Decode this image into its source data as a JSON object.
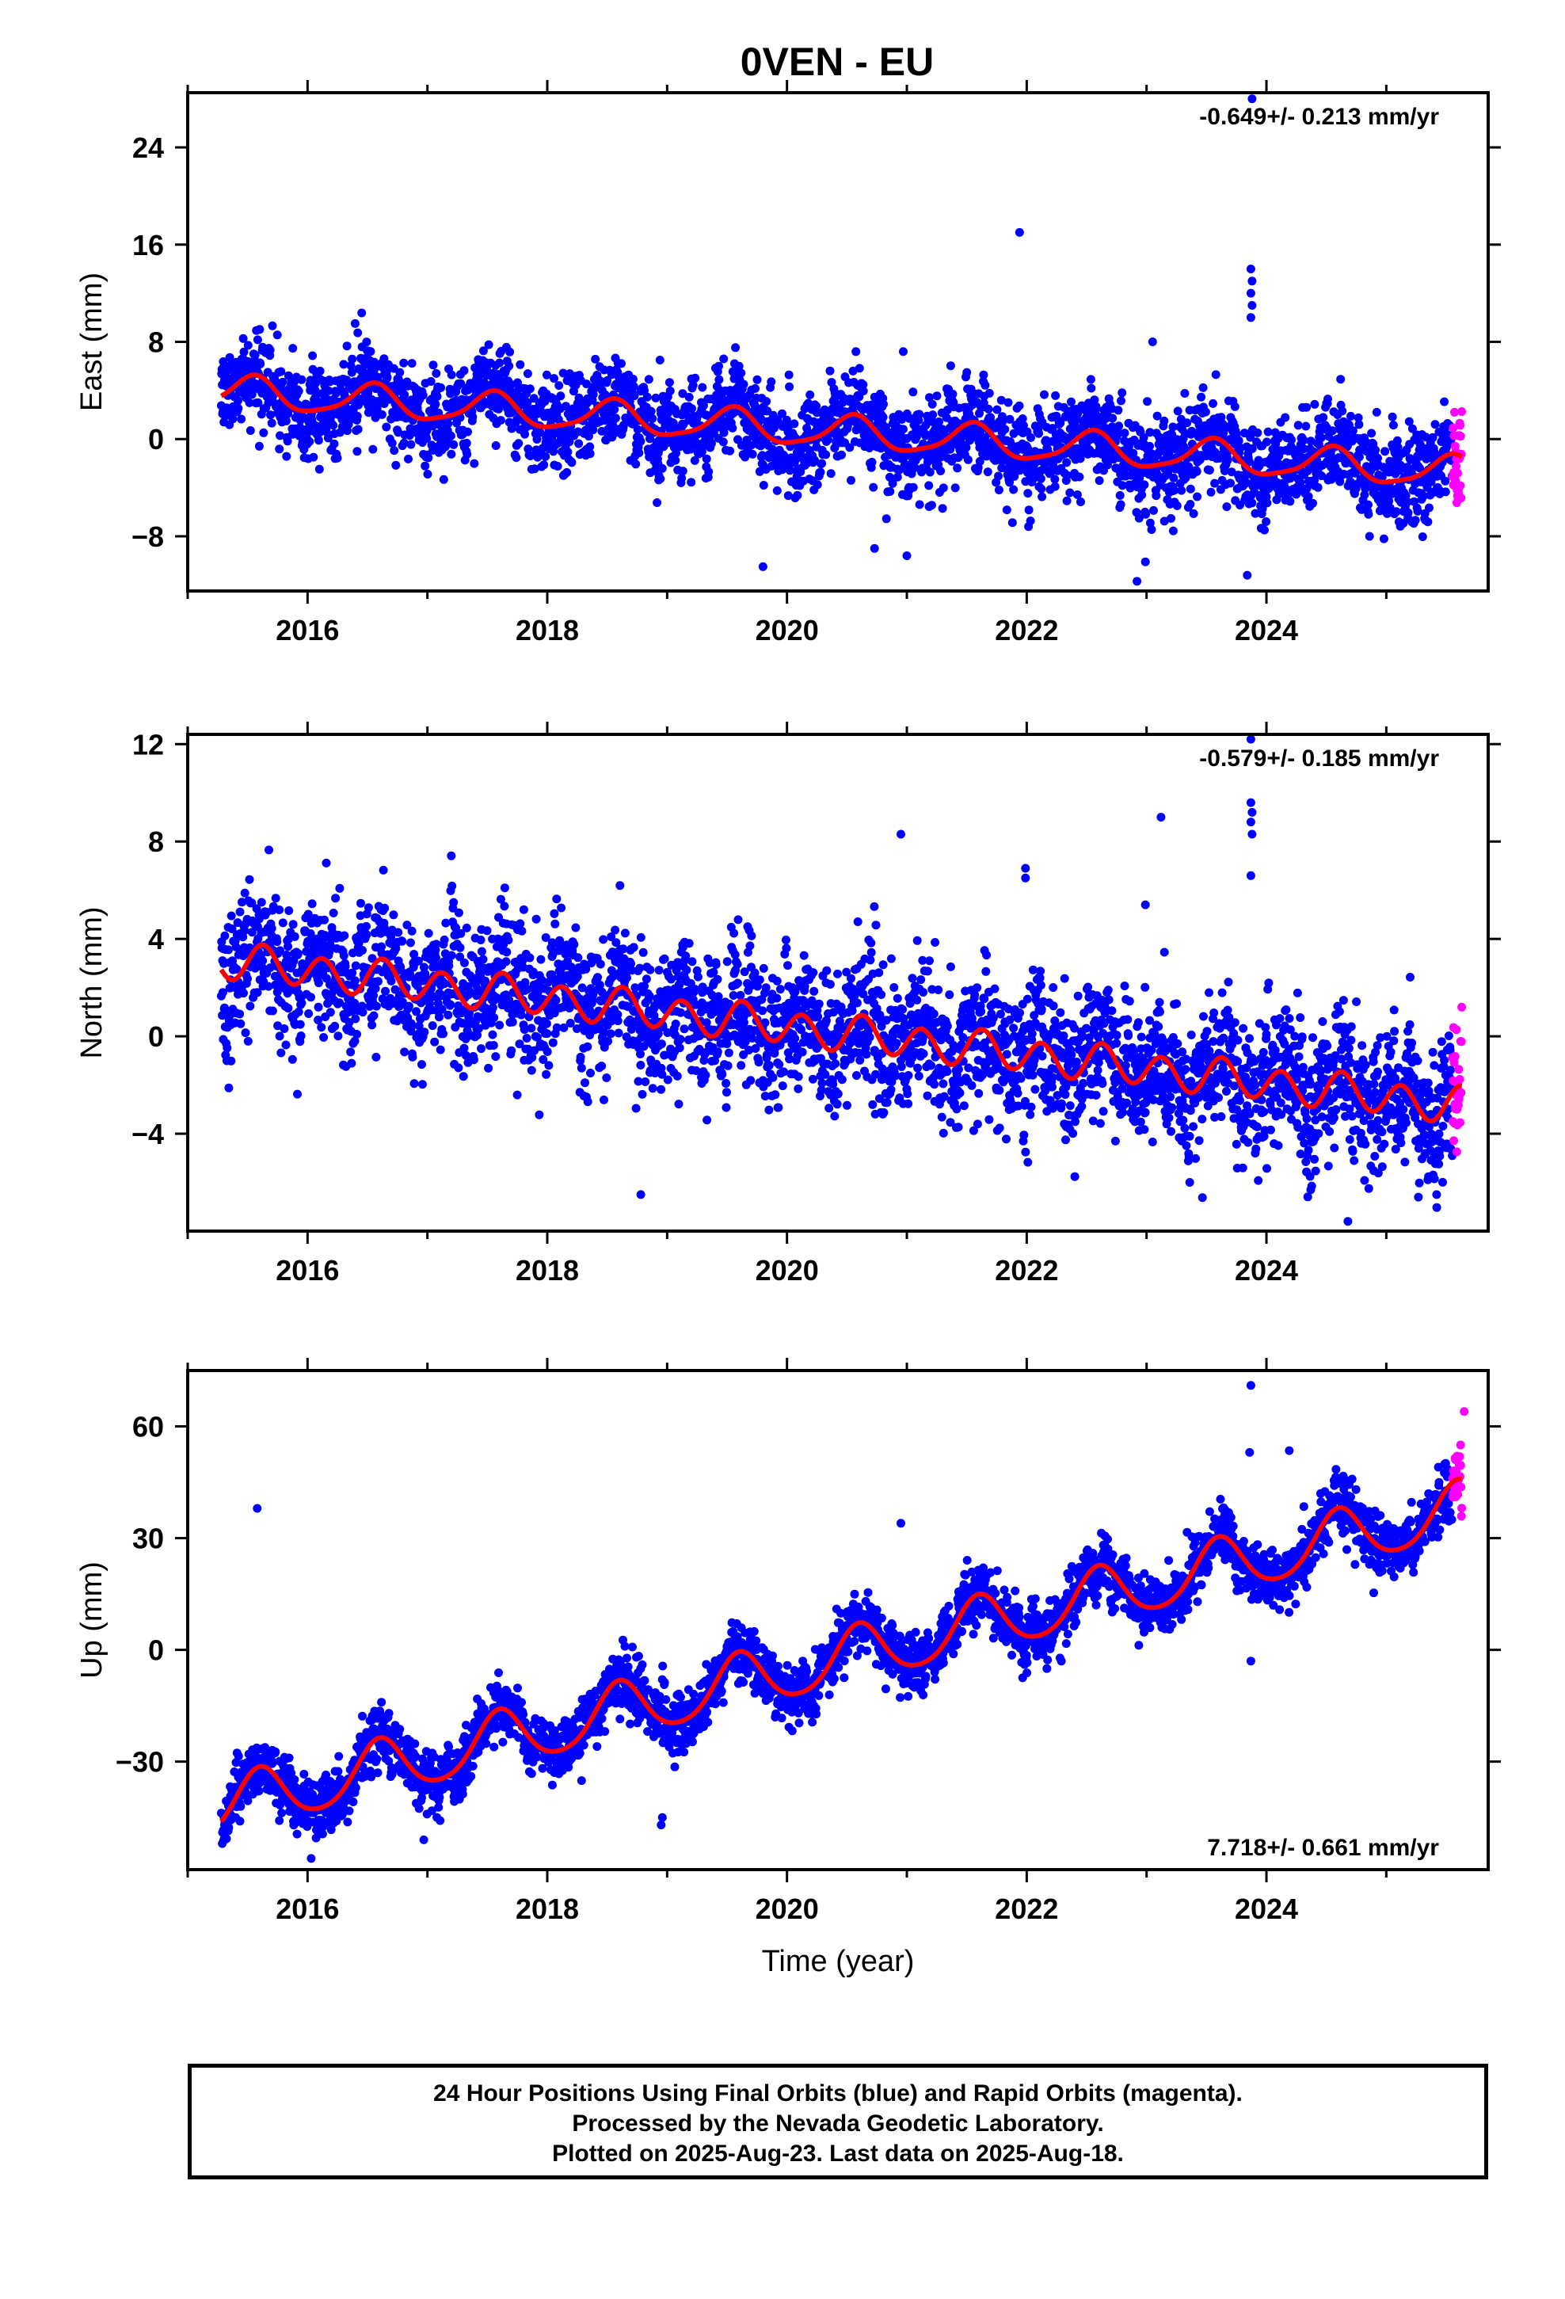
{
  "title": "0VEN - EU",
  "colors": {
    "final_orbits": "#0000ff",
    "rapid_orbits": "#ff00ff",
    "model": "#ff0000",
    "frame": "#000000"
  },
  "x_axis": {
    "label": "Time (year)",
    "range": [
      2015.0,
      2025.85
    ],
    "ticks": [
      2016,
      2018,
      2020,
      2022,
      2024
    ],
    "tick_labels": [
      "2016",
      "2018",
      "2020",
      "2022",
      "2024"
    ]
  },
  "footer": {
    "line1": "24 Hour Positions Using Final Orbits (blue) and Rapid Orbits (magenta).",
    "line2": "Processed by the Nevada Geodetic Laboratory.",
    "line3": "Plotted on 2025-Aug-23. Last data on 2025-Aug-18."
  },
  "chart_data": [
    {
      "type": "scatter",
      "component": "east",
      "ylabel": "East (mm)",
      "ylim": [
        -12.5,
        28.5
      ],
      "yticks": [
        -8,
        0,
        8,
        16,
        24
      ],
      "ytick_labels": [
        "−8",
        "0",
        "8",
        "16",
        "24"
      ],
      "rate_label": "-0.649+/- 0.213 mm/yr",
      "rate_position": "top-right",
      "data_start": 2015.28,
      "data_end": 2025.63,
      "rapid_start": 2025.55,
      "model": {
        "offset": 0.5,
        "rate": -0.649,
        "ref_epoch": 2020.5,
        "annual_amp": 1.3,
        "annual_phase": 1.3,
        "semiannual_amp": 0.3,
        "semiannual_phase": 0.5
      },
      "scatter_sd": 1.8,
      "seed": 11,
      "outliers": [
        {
          "x": 2021.94,
          "y": 17.0
        },
        {
          "x": 2023.88,
          "y": 28.0
        },
        {
          "x": 2023.87,
          "y": 14.0
        },
        {
          "x": 2023.88,
          "y": 13.0
        },
        {
          "x": 2023.87,
          "y": 12.0
        },
        {
          "x": 2023.88,
          "y": 11.0
        },
        {
          "x": 2023.87,
          "y": 10.0
        },
        {
          "x": 2023.05,
          "y": 8.0
        },
        {
          "x": 2020.97,
          "y": 7.2
        },
        {
          "x": 2019.8,
          "y": -10.5
        },
        {
          "x": 2022.92,
          "y": -11.7
        },
        {
          "x": 2023.84,
          "y": -11.2
        },
        {
          "x": 2021.0,
          "y": -9.6
        },
        {
          "x": 2020.73,
          "y": -9.0
        },
        {
          "x": 2022.99,
          "y": -10.1
        },
        {
          "x": 2024.86,
          "y": -8.0
        }
      ]
    },
    {
      "type": "scatter",
      "component": "north",
      "ylabel": "North (mm)",
      "ylim": [
        -8.0,
        12.4
      ],
      "yticks": [
        -4,
        0,
        4,
        8,
        12
      ],
      "ytick_labels": [
        "−4",
        "0",
        "4",
        "8",
        "12"
      ],
      "rate_label": "-0.579+/- 0.185 mm/yr",
      "rate_position": "top-right",
      "data_start": 2015.28,
      "data_end": 2025.63,
      "rapid_start": 2025.55,
      "model": {
        "offset": 0.1,
        "rate": -0.579,
        "ref_epoch": 2020.5,
        "annual_amp": 0.15,
        "annual_phase": 0.4,
        "semiannual_amp": 0.7,
        "semiannual_phase": 0.0
      },
      "scatter_sd": 1.4,
      "seed": 23,
      "outliers": [
        {
          "x": 2023.87,
          "y": 12.2
        },
        {
          "x": 2023.87,
          "y": 9.6
        },
        {
          "x": 2023.88,
          "y": 9.2
        },
        {
          "x": 2023.87,
          "y": 8.8
        },
        {
          "x": 2023.88,
          "y": 8.3
        },
        {
          "x": 2023.87,
          "y": 6.6
        },
        {
          "x": 2023.12,
          "y": 9.0
        },
        {
          "x": 2020.95,
          "y": 8.3
        },
        {
          "x": 2021.99,
          "y": 6.9
        },
        {
          "x": 2021.99,
          "y": 6.5
        },
        {
          "x": 2022.99,
          "y": 5.4
        },
        {
          "x": 2018.78,
          "y": -6.5
        },
        {
          "x": 2024.37,
          "y": -6.3
        },
        {
          "x": 2024.68,
          "y": -7.6
        },
        {
          "x": 2025.42,
          "y": -6.5
        },
        {
          "x": 2023.36,
          "y": -6.0
        }
      ]
    },
    {
      "type": "scatter",
      "component": "up",
      "ylabel": "Up (mm)",
      "ylim": [
        -59.0,
        75.0
      ],
      "yticks": [
        -30,
        0,
        30,
        60
      ],
      "ytick_labels": [
        "−30",
        "0",
        "30",
        "60"
      ],
      "rate_label": "7.718+/- 0.661 mm/yr",
      "rate_position": "bottom-right",
      "data_start": 2015.28,
      "data_end": 2025.63,
      "rapid_start": 2025.55,
      "model": {
        "offset": -2.0,
        "rate": 7.718,
        "ref_epoch": 2020.5,
        "annual_amp": 7.5,
        "annual_phase": 0.95,
        "semiannual_amp": 1.0,
        "semiannual_phase": 0.3
      },
      "scatter_sd": 3.8,
      "seed": 37,
      "outliers": [
        {
          "x": 2015.58,
          "y": 38.0
        },
        {
          "x": 2023.87,
          "y": 71.0
        },
        {
          "x": 2023.86,
          "y": 53.0
        },
        {
          "x": 2024.19,
          "y": 53.5
        },
        {
          "x": 2023.87,
          "y": -3.0
        },
        {
          "x": 2018.96,
          "y": -45.0
        },
        {
          "x": 2018.95,
          "y": -47.0
        },
        {
          "x": 2016.03,
          "y": -56.0
        },
        {
          "x": 2016.97,
          "y": -51.0
        },
        {
          "x": 2020.95,
          "y": 34.0
        },
        {
          "x": 2025.65,
          "y": 64.0
        },
        {
          "x": 2025.62,
          "y": 55.0
        }
      ]
    }
  ]
}
